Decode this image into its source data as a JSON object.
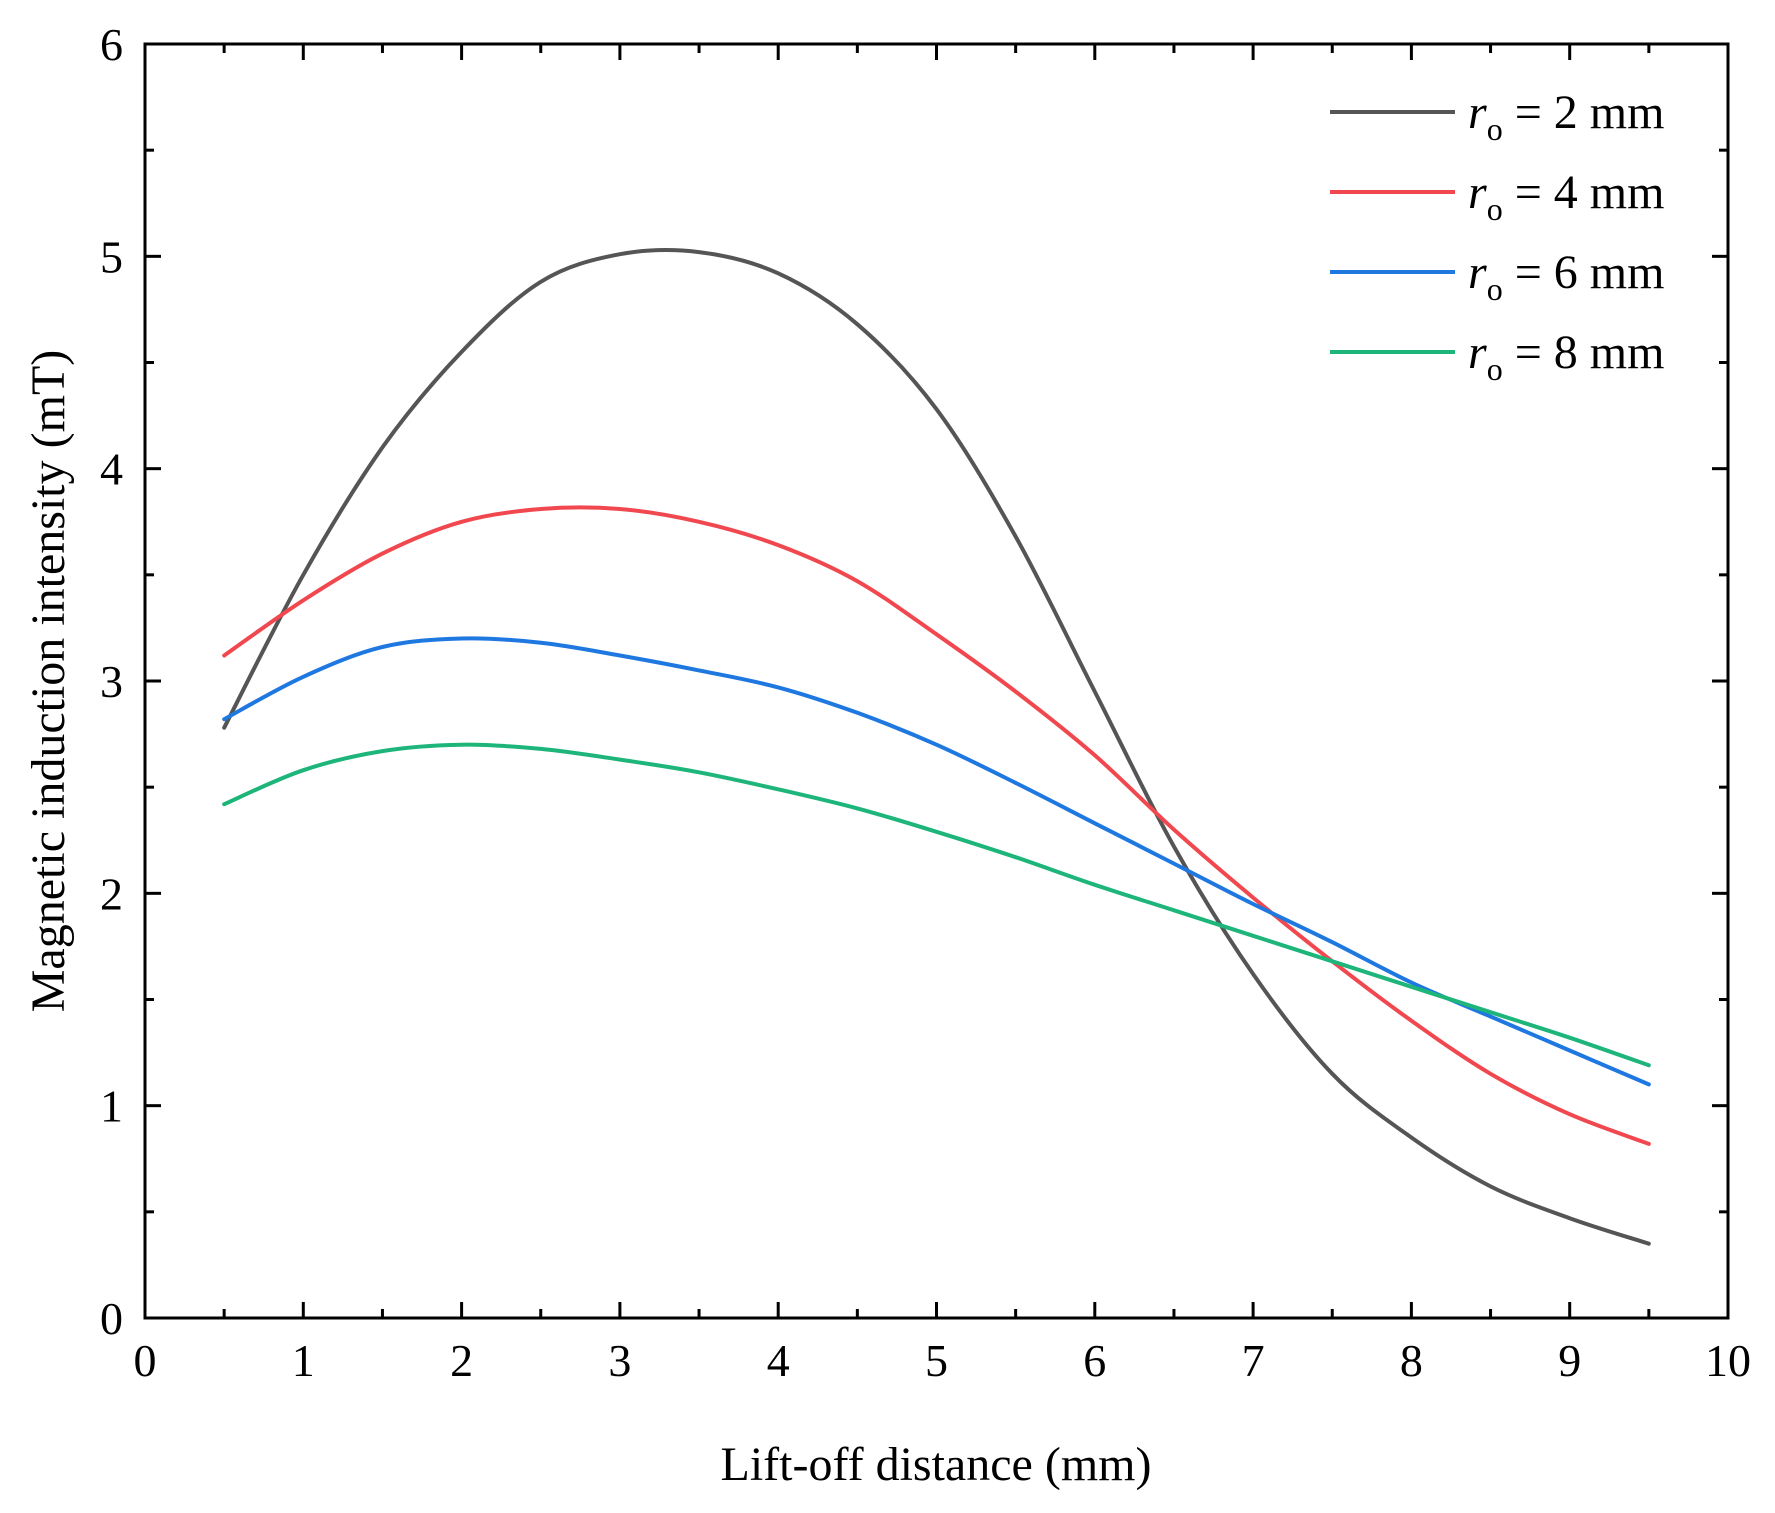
{
  "chart_data": {
    "type": "line",
    "title": "",
    "xlabel": "Lift-off distance (mm)",
    "ylabel": "Magnetic induction intensity (mT)",
    "xlim": [
      0,
      10
    ],
    "ylim": [
      0,
      6
    ],
    "xticks": [
      "0",
      "1",
      "2",
      "3",
      "4",
      "5",
      "6",
      "7",
      "8",
      "9",
      "10"
    ],
    "yticks": [
      "0",
      "1",
      "2",
      "3",
      "4",
      "5",
      "6"
    ],
    "grid": false,
    "legend_position": "top-right",
    "x": [
      0.5,
      1.0,
      1.5,
      2.0,
      2.5,
      3.0,
      3.5,
      4.0,
      4.5,
      5.0,
      5.5,
      6.0,
      6.5,
      7.0,
      7.5,
      8.0,
      8.5,
      9.0,
      9.5
    ],
    "series": [
      {
        "name": "ro = 2 mm",
        "legend_var": "r",
        "legend_sub": "o",
        "legend_rest": " = 2 mm",
        "color": "#555555",
        "values": [
          2.78,
          3.5,
          4.1,
          4.55,
          4.88,
          5.01,
          5.02,
          4.92,
          4.68,
          4.28,
          3.68,
          2.95,
          2.22,
          1.62,
          1.15,
          0.85,
          0.62,
          0.47,
          0.35
        ]
      },
      {
        "name": "ro = 4 mm",
        "legend_var": "r",
        "legend_sub": "o",
        "legend_rest": " = 4 mm",
        "color": "#f0484e",
        "values": [
          3.12,
          3.38,
          3.6,
          3.75,
          3.81,
          3.81,
          3.75,
          3.64,
          3.47,
          3.22,
          2.95,
          2.65,
          2.3,
          1.98,
          1.68,
          1.4,
          1.15,
          0.96,
          0.82
        ]
      },
      {
        "name": "ro = 6 mm",
        "legend_var": "r",
        "legend_sub": "o",
        "legend_rest": " = 6 mm",
        "color": "#1e78e0",
        "values": [
          2.82,
          3.02,
          3.16,
          3.2,
          3.18,
          3.12,
          3.05,
          2.97,
          2.85,
          2.7,
          2.52,
          2.33,
          2.14,
          1.95,
          1.77,
          1.58,
          1.42,
          1.26,
          1.1
        ]
      },
      {
        "name": "ro = 8 mm",
        "legend_var": "r",
        "legend_sub": "o",
        "legend_rest": " = 8 mm",
        "color": "#1db57a",
        "values": [
          2.42,
          2.58,
          2.67,
          2.7,
          2.68,
          2.63,
          2.57,
          2.49,
          2.4,
          2.29,
          2.17,
          2.04,
          1.92,
          1.8,
          1.68,
          1.56,
          1.44,
          1.32,
          1.19
        ]
      }
    ]
  }
}
